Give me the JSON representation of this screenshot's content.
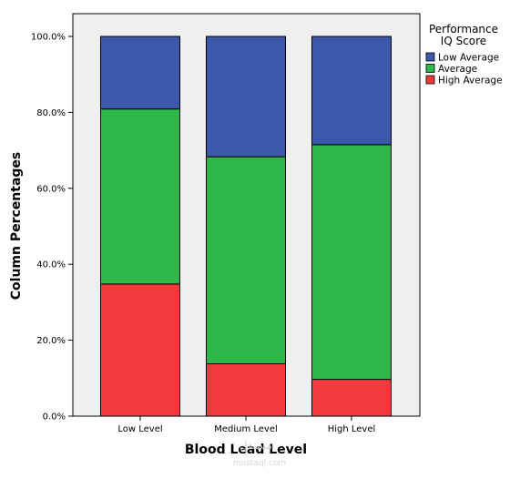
{
  "chart_data": {
    "type": "bar",
    "stacked": true,
    "title": "",
    "xlabel": "Blood Lead Level",
    "ylabel": "Column Percentages",
    "categories": [
      "Low Level",
      "Medium Level",
      "High Level"
    ],
    "ylim": [
      0,
      100
    ],
    "yticks": [
      0,
      20,
      40,
      60,
      80,
      100
    ],
    "ytick_labels": [
      "0.0%",
      "20.0%",
      "40.0%",
      "60.0%",
      "80.0%",
      "100.0%"
    ],
    "grid": false,
    "legend": {
      "title_lines": [
        "Performance",
        "IQ Score"
      ],
      "placement": "top-right, outside plot",
      "entries": [
        "Low Average",
        "Average",
        "High Average"
      ]
    },
    "series": [
      {
        "name": "High Average",
        "color": "#f23a3c",
        "values": [
          34.8,
          13.8,
          9.7
        ]
      },
      {
        "name": "Average",
        "color": "#2eb84a",
        "values": [
          46.1,
          54.5,
          61.8
        ]
      },
      {
        "name": "Low Average",
        "color": "#3c58aa",
        "values": [
          19.1,
          31.7,
          28.5
        ]
      }
    ]
  },
  "watermark": {
    "logo_text": "مستقل",
    "site": "mostaql.com"
  }
}
